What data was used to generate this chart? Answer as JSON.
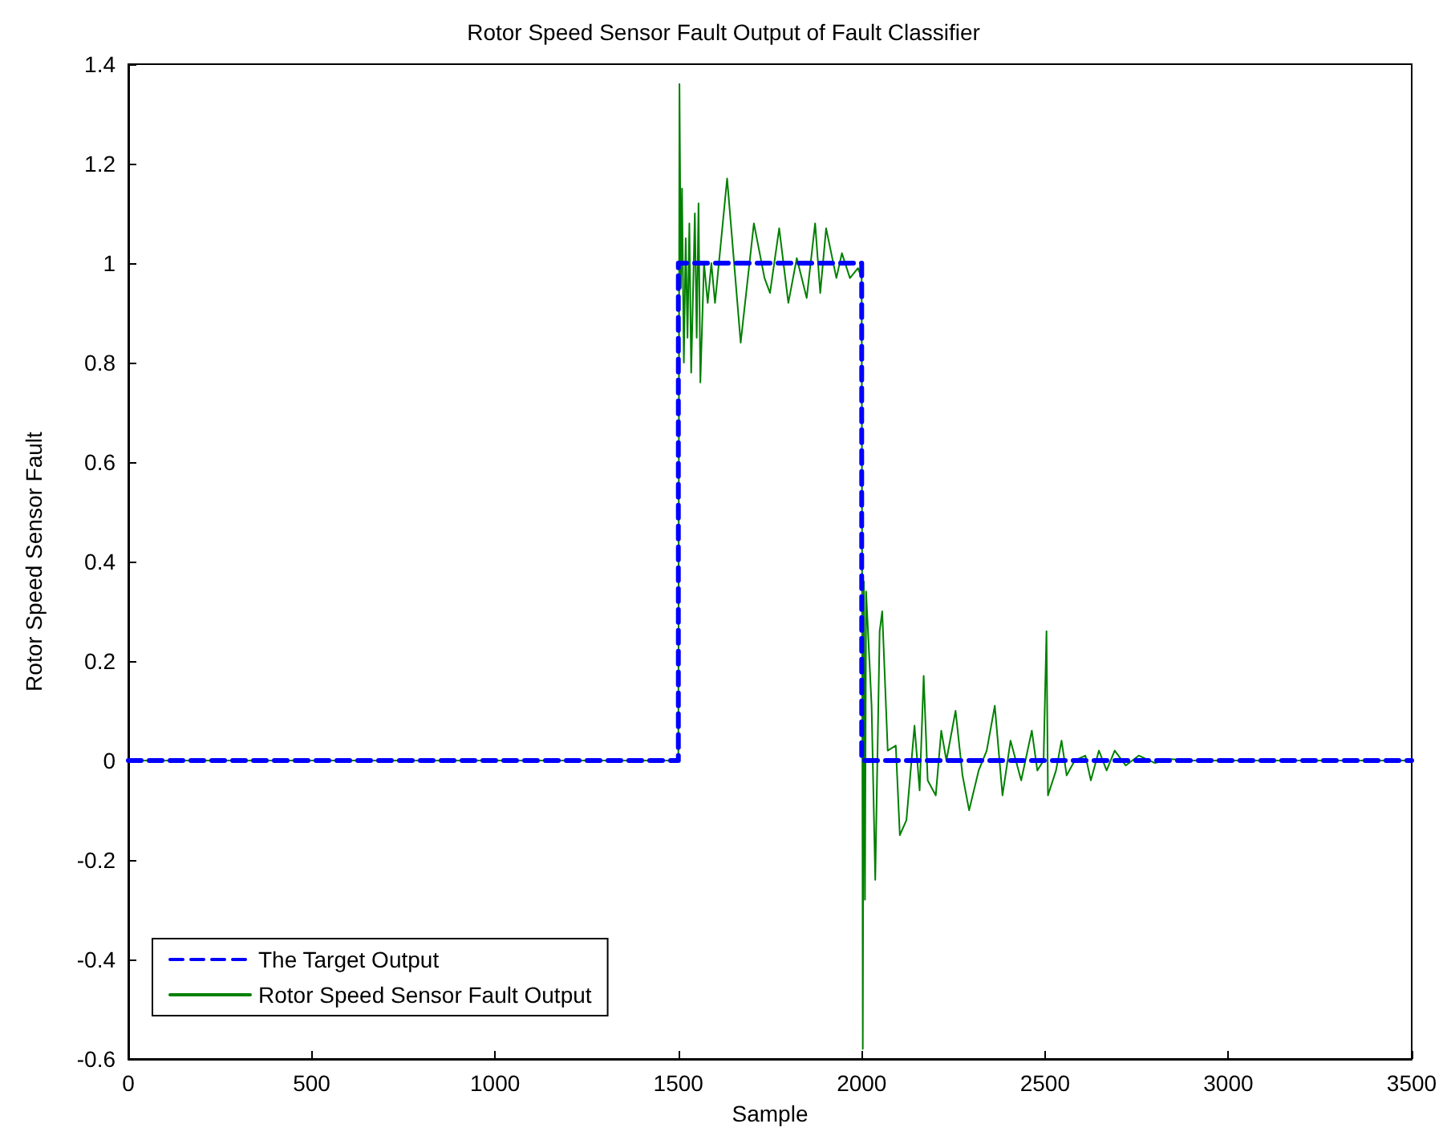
{
  "chart_data": {
    "type": "line",
    "title": "Rotor Speed Sensor Fault Output of Fault Classifier",
    "xlabel": "Sample",
    "ylabel": "Rotor Speed Sensor Fault",
    "xlim": [
      0,
      3500
    ],
    "xticks": [
      0,
      500,
      1000,
      1500,
      2000,
      2500,
      3000,
      3500
    ],
    "ylim": [
      -0.6,
      1.4
    ],
    "yticks": [
      -0.6,
      -0.4,
      -0.2,
      0,
      0.2,
      0.4,
      0.6,
      0.8,
      1,
      1.2,
      1.4
    ],
    "grid": false,
    "legend": "bottom left",
    "marker": "none",
    "series": [
      {
        "name": "The Target Output",
        "color": "#0000ff",
        "line_style": "dashed",
        "x": [
          0,
          1500,
          1500,
          2000,
          2000,
          3500
        ],
        "values": [
          0,
          0,
          1,
          1,
          0,
          0
        ]
      },
      {
        "name": "Rotor Speed Sensor Fault Output",
        "color": "#008000",
        "line_style": "solid",
        "x": [
          0,
          1500,
          1503,
          1507,
          1510,
          1515,
          1520,
          1525,
          1530,
          1535,
          1545,
          1550,
          1555,
          1560,
          1570,
          1580,
          1590,
          1600,
          1633,
          1670,
          1706,
          1735,
          1750,
          1775,
          1800,
          1823,
          1850,
          1873,
          1887,
          1903,
          1931,
          1946,
          1968,
          1990,
          2000,
          2003,
          2006,
          2009,
          2012,
          2027,
          2037,
          2049,
          2056,
          2071,
          2093,
          2104,
          2122,
          2144,
          2158,
          2169,
          2180,
          2202,
          2217,
          2231,
          2256,
          2275,
          2293,
          2319,
          2341,
          2363,
          2384,
          2406,
          2435,
          2464,
          2479,
          2496,
          2504,
          2508,
          2530,
          2545,
          2559,
          2581,
          2610,
          2625,
          2647,
          2668,
          2690,
          2720,
          2756,
          2800,
          2843,
          2900,
          3500
        ],
        "values": [
          0,
          0,
          1.36,
          0.95,
          1.15,
          0.8,
          1.05,
          0.85,
          1.08,
          0.78,
          1.1,
          0.85,
          1.12,
          0.76,
          1.0,
          0.92,
          1.0,
          0.92,
          1.17,
          0.84,
          1.08,
          0.97,
          0.94,
          1.07,
          0.92,
          1.01,
          0.93,
          1.08,
          0.94,
          1.07,
          0.97,
          1.02,
          0.97,
          0.99,
          0.97,
          -0.58,
          0.36,
          -0.28,
          0.34,
          0.11,
          -0.24,
          0.26,
          0.3,
          0.02,
          0.03,
          -0.15,
          -0.12,
          0.07,
          -0.06,
          0.17,
          -0.04,
          -0.07,
          0.06,
          0,
          0.1,
          -0.03,
          -0.1,
          -0.02,
          0.02,
          0.11,
          -0.07,
          0.04,
          -0.04,
          0.06,
          -0.02,
          0,
          0.26,
          -0.07,
          -0.02,
          0.04,
          -0.03,
          0,
          0.01,
          -0.04,
          0.02,
          -0.02,
          0.02,
          -0.01,
          0.01,
          -0.005,
          0.003,
          0,
          0
        ]
      }
    ]
  }
}
